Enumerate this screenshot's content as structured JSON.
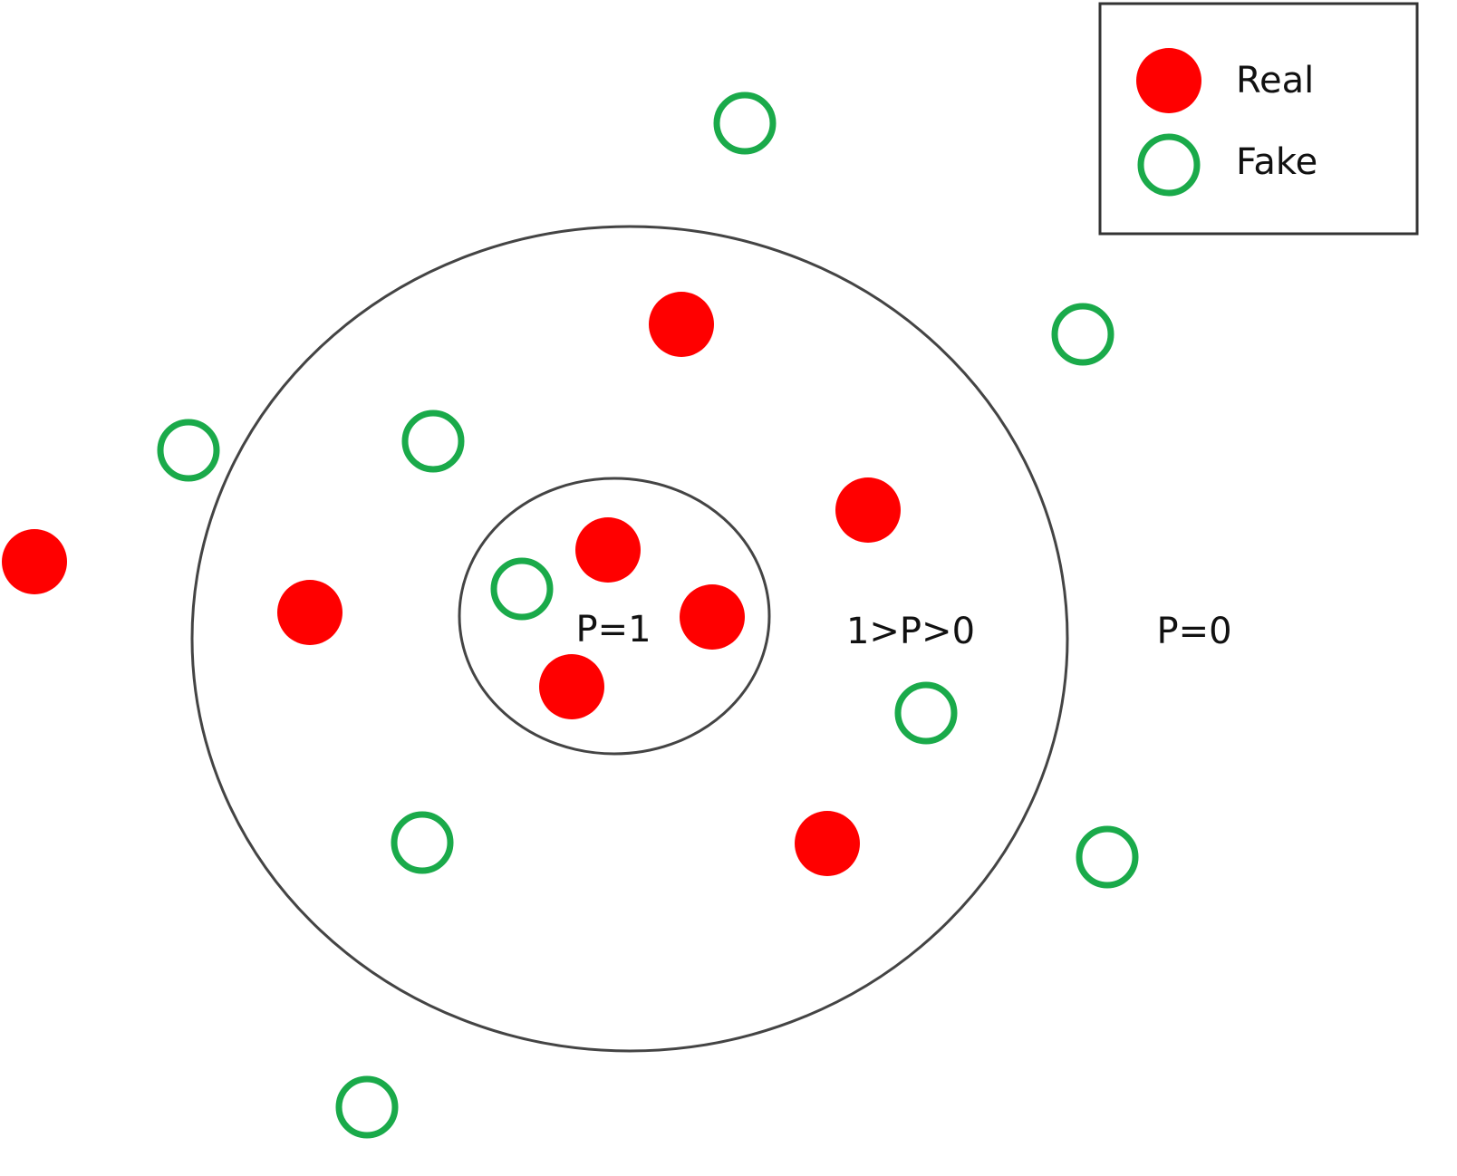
{
  "legend": {
    "items": [
      {
        "label": "Real",
        "marker": "filled-circle",
        "color": "#ff0000"
      },
      {
        "label": "Fake",
        "marker": "hollow-circle",
        "color": "#1aaa4a"
      }
    ]
  },
  "regions": {
    "inner": {
      "label": "P=1"
    },
    "middle": {
      "label": "1>P>0"
    },
    "outer": {
      "label": "P=0"
    }
  },
  "colors": {
    "real": "#ff0000",
    "fake": "#1aaa4a",
    "outline": "#444444"
  }
}
